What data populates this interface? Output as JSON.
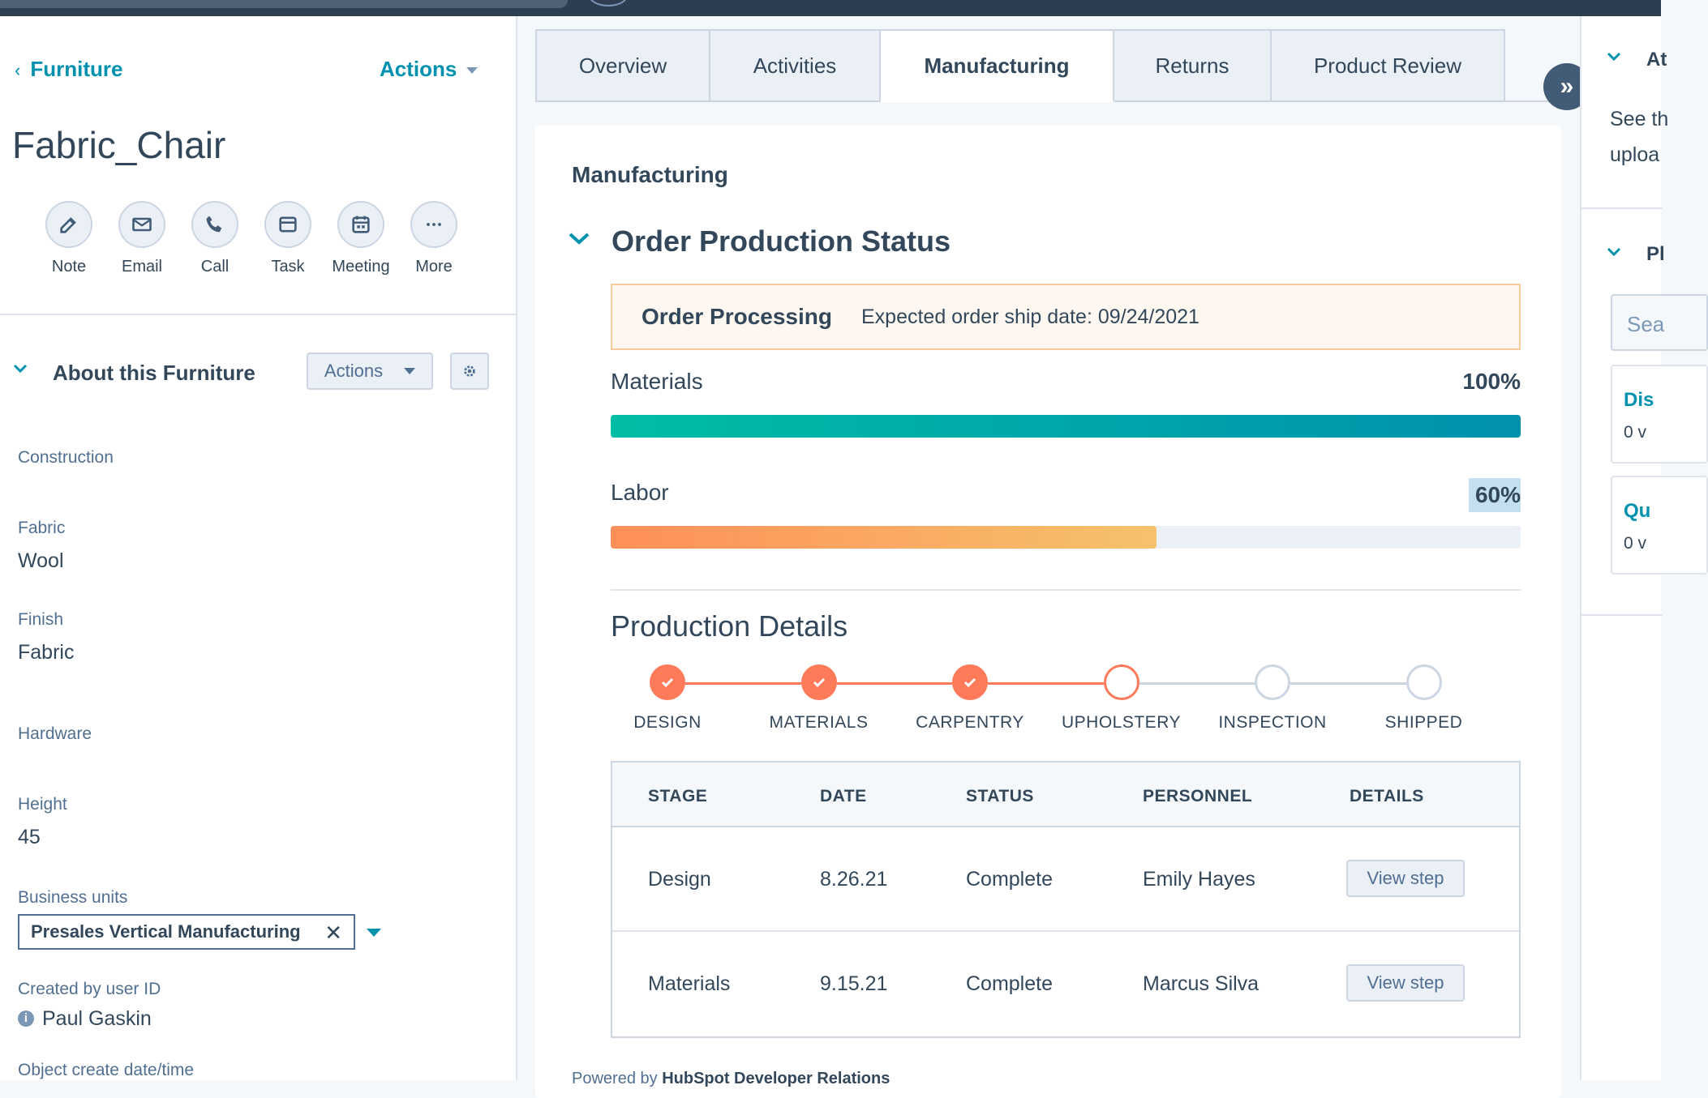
{
  "breadcrumb": {
    "label": "Furniture"
  },
  "header": {
    "actions_label": "Actions",
    "record_name": "Fabric_Chair"
  },
  "quick_actions": [
    {
      "label": "Note",
      "icon": "note-icon"
    },
    {
      "label": "Email",
      "icon": "email-icon"
    },
    {
      "label": "Call",
      "icon": "call-icon"
    },
    {
      "label": "Task",
      "icon": "task-icon"
    },
    {
      "label": "Meeting",
      "icon": "meeting-icon"
    },
    {
      "label": "More",
      "icon": "more-icon"
    }
  ],
  "about": {
    "title": "About this Furniture",
    "actions_label": "Actions",
    "properties": [
      {
        "label": "Construction",
        "value": ""
      },
      {
        "label": "Fabric",
        "value": "Wool"
      },
      {
        "label": "Finish",
        "value": "Fabric"
      },
      {
        "label": "Hardware",
        "value": ""
      },
      {
        "label": "Height",
        "value": "45"
      },
      {
        "label": "Business units",
        "value": "Presales Vertical Manufacturing"
      },
      {
        "label": "Created by user ID",
        "value": "Paul Gaskin"
      },
      {
        "label": "Object create date/time",
        "value": ""
      }
    ]
  },
  "tabs": [
    {
      "label": "Overview"
    },
    {
      "label": "Activities"
    },
    {
      "label": "Manufacturing",
      "active": true
    },
    {
      "label": "Returns"
    },
    {
      "label": "Product Review"
    }
  ],
  "manufacturing": {
    "card_title": "Manufacturing",
    "section_title": "Order Production Status",
    "alert": {
      "title": "Order Processing",
      "text": "Expected order ship date: 09/24/2021"
    },
    "progress": [
      {
        "label": "Materials",
        "percent_text": "100%",
        "value": 1.0
      },
      {
        "label": "Labor",
        "percent_text": "60%",
        "value": 0.6
      }
    ],
    "details_title": "Production Details",
    "steps": [
      {
        "label": "DESIGN",
        "state": "complete"
      },
      {
        "label": "MATERIALS",
        "state": "complete"
      },
      {
        "label": "CARPENTRY",
        "state": "complete"
      },
      {
        "label": "UPHOLSTERY",
        "state": "current"
      },
      {
        "label": "INSPECTION",
        "state": "pending"
      },
      {
        "label": "SHIPPED",
        "state": "pending"
      }
    ],
    "table": {
      "headers": [
        "STAGE",
        "DATE",
        "STATUS",
        "PERSONNEL",
        "DETAILS"
      ],
      "rows": [
        {
          "stage": "Design",
          "date": "8.26.21",
          "status": "Complete",
          "personnel": "Emily Hayes",
          "details": "View step"
        },
        {
          "stage": "Materials",
          "date": "9.15.21",
          "status": "Complete",
          "personnel": "Marcus Silva",
          "details": "View step"
        }
      ]
    },
    "powered_prefix": "Powered by",
    "powered_by": "HubSpot Developer Relations"
  },
  "right_panel": {
    "section1_title": "At",
    "section1_text1": "See th",
    "section1_text2": "uploa",
    "section2_title": "Pl",
    "search_placeholder": "Sea",
    "cards": [
      {
        "title": "Dis",
        "sub": "0 v"
      },
      {
        "title": "Qu",
        "sub": "0 v"
      }
    ]
  },
  "colors": {
    "accent": "#0091ae",
    "orange": "#ff7a59",
    "materials_bar_start": "#00bda5",
    "materials_bar_end": "#0091ae",
    "labor_bar_start": "#ff8f59",
    "labor_bar_end": "#f5c26b",
    "highlight": "#c4dff0"
  }
}
